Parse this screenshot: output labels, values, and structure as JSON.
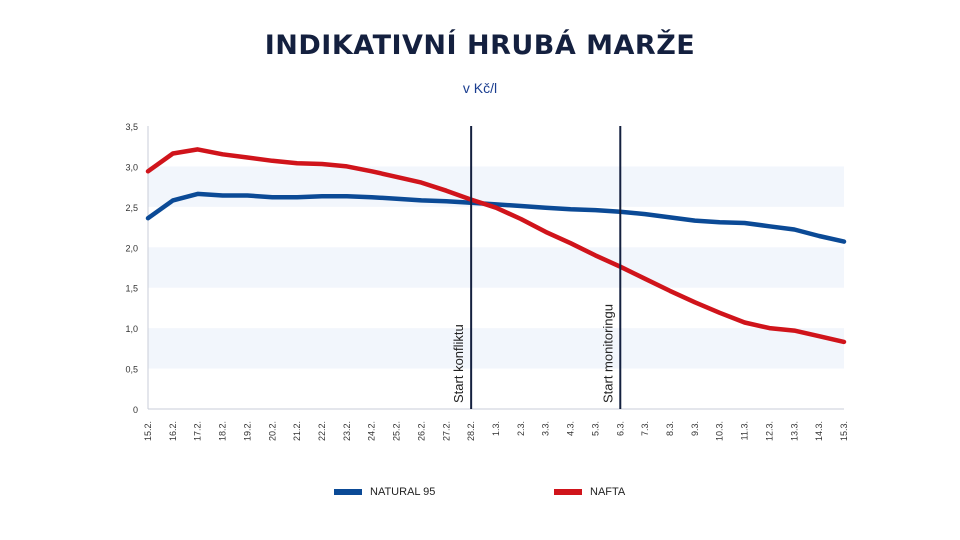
{
  "title": "INDIKATIVNÍ HRUBÁ MARŽE",
  "subtitle": "v  Kč/l",
  "colors": {
    "natural95": "#0b4a96",
    "nafta": "#d0141b",
    "grid_band": "#f2f6fc",
    "axis": "#14203f"
  },
  "chart_data": {
    "type": "line",
    "x": [
      "15.2.",
      "16.2.",
      "17.2.",
      "18.2.",
      "19.2.",
      "20.2.",
      "21.2.",
      "22.2.",
      "23.2.",
      "24.2.",
      "25.2.",
      "26.2.",
      "27.2.",
      "28.2.",
      "1.3.",
      "2.3.",
      "3.3.",
      "4.3.",
      "5.3.",
      "6.3.",
      "7.3.",
      "8.3.",
      "9.3.",
      "10.3.",
      "11.3.",
      "12.3.",
      "13.3.",
      "14.3.",
      "15.3."
    ],
    "y_ticks": [
      "0",
      "0,5",
      "1,0",
      "1,5",
      "2,0",
      "2,5",
      "3,0",
      "3,5"
    ],
    "ylim": [
      0,
      3.5
    ],
    "series": [
      {
        "name": "NATURAL 95",
        "color": "#0b4a96",
        "values": [
          2.36,
          2.58,
          2.66,
          2.64,
          2.64,
          2.62,
          2.62,
          2.63,
          2.63,
          2.62,
          2.6,
          2.58,
          2.57,
          2.55,
          2.53,
          2.51,
          2.49,
          2.47,
          2.46,
          2.44,
          2.41,
          2.37,
          2.33,
          2.31,
          2.3,
          2.26,
          2.22,
          2.14,
          2.07
        ]
      },
      {
        "name": "NAFTA",
        "color": "#d0141b",
        "values": [
          2.94,
          3.16,
          3.21,
          3.15,
          3.11,
          3.07,
          3.04,
          3.03,
          3.0,
          2.94,
          2.87,
          2.8,
          2.7,
          2.59,
          2.49,
          2.35,
          2.19,
          2.05,
          1.9,
          1.76,
          1.61,
          1.46,
          1.32,
          1.19,
          1.07,
          1.0,
          0.97,
          0.9,
          0.83
        ]
      }
    ],
    "annotations": [
      {
        "label": "Start konfliktu",
        "x": "28.2."
      },
      {
        "label": "Start monitoringu",
        "x": "6.3."
      }
    ],
    "legend": {
      "position": "bottom"
    }
  }
}
